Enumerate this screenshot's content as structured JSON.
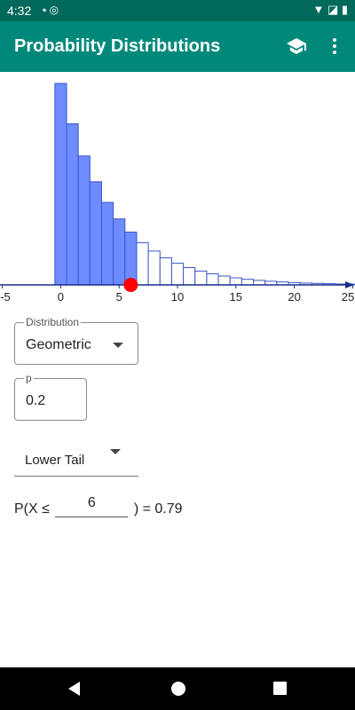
{
  "status_bar": {
    "time": "4:32",
    "left_icons": "▪ ◎",
    "right_icons": "▼ ◪ ▮"
  },
  "app_bar": {
    "title": "Probability Distributions",
    "school_icon": "school-icon",
    "more_icon": "more-vert-icon"
  },
  "chart_data": {
    "type": "bar",
    "x_ticks": [
      -5,
      0,
      5,
      10,
      15,
      20,
      25
    ],
    "xlim": [
      -5.2,
      25.2
    ],
    "ylim": [
      0,
      0.2
    ],
    "p": 0.2,
    "x": [
      0,
      1,
      2,
      3,
      4,
      5,
      6,
      7,
      8,
      9,
      10,
      11,
      12,
      13,
      14,
      15,
      16,
      17,
      18,
      19,
      20,
      21,
      22,
      23,
      24,
      25
    ],
    "values": [
      0.2,
      0.16,
      0.128,
      0.1024,
      0.0819,
      0.0655,
      0.0524,
      0.0419,
      0.0336,
      0.0268,
      0.0215,
      0.0172,
      0.0137,
      0.011,
      0.0088,
      0.007,
      0.0056,
      0.0045,
      0.0036,
      0.0029,
      0.0023,
      0.0018,
      0.0015,
      0.0012,
      0.0009,
      0.0008
    ],
    "highlight_upto": 6,
    "marker_x": 6,
    "colors": {
      "filled": "#6e8cff",
      "filled_stroke": "#3a56c8",
      "empty_stroke": "#3a56c8",
      "axis": "#1a2c8a",
      "marker": "#ff0000"
    }
  },
  "form": {
    "distribution": {
      "label": "Distribution",
      "value": "Geometric"
    },
    "parameter": {
      "label": "p",
      "value": "0.2"
    },
    "tail": {
      "value": "Lower Tail"
    },
    "probability": {
      "prefix": "P(X ≤",
      "input_value": "6",
      "suffix": ") = 0.79"
    }
  },
  "nav_bar": {
    "back_icon": "back-icon",
    "home_icon": "home-icon",
    "recents_icon": "recents-icon"
  }
}
